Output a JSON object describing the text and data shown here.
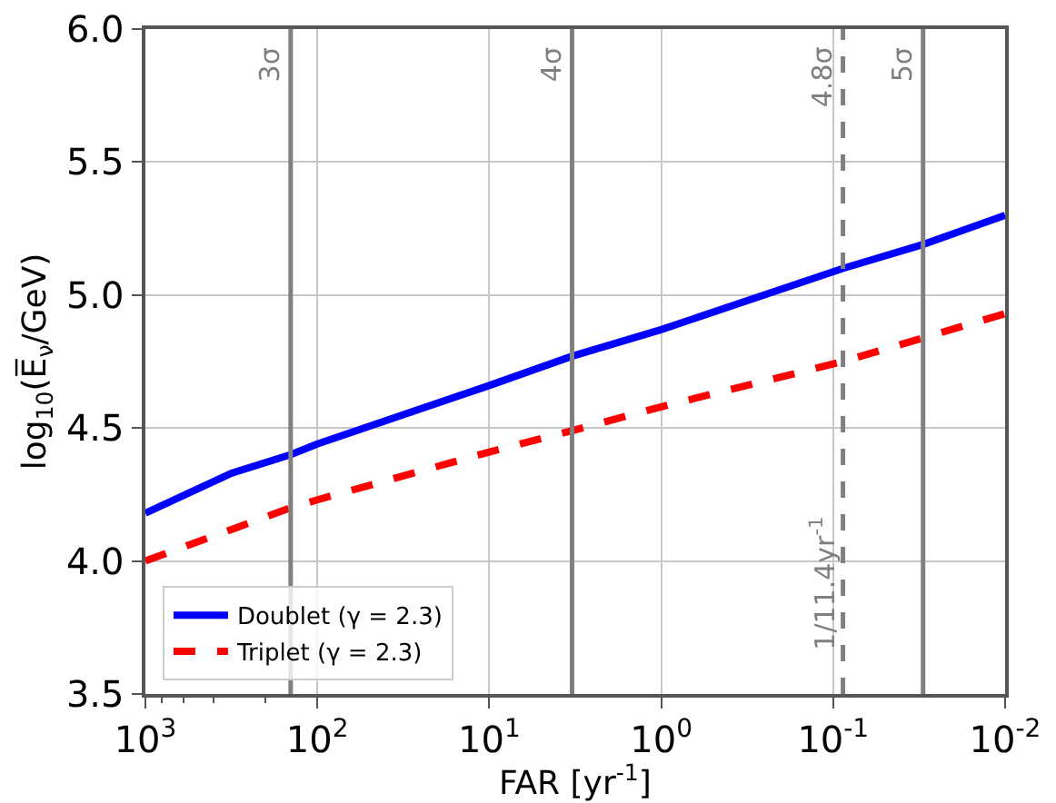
{
  "chart_data": {
    "type": "line",
    "xlabel": "FAR [yr$^{-1}$]",
    "ylabel": "log$_{10}$(E̅$_{ν}$/GeV)",
    "log": "x",
    "xlim": [
      1000,
      0.01
    ],
    "xticks": [
      {
        "value": 1000,
        "label": "10$^{3}$"
      },
      {
        "value": 100,
        "label": "10$^{2}$"
      },
      {
        "value": 10,
        "label": "10$^{1}$"
      },
      {
        "value": 1,
        "label": "10$^{0}$"
      },
      {
        "value": 0.1,
        "label": "10$^{-1}$"
      },
      {
        "value": 0.01,
        "label": "10$^{-2}$"
      }
    ],
    "ylim": [
      3.5,
      6.0
    ],
    "yticks": [
      {
        "value": 3.5,
        "label": "3.5"
      },
      {
        "value": 4.0,
        "label": "4.0"
      },
      {
        "value": 4.5,
        "label": "4.5"
      },
      {
        "value": 5.0,
        "label": "5.0"
      },
      {
        "value": 5.5,
        "label": "5.5"
      },
      {
        "value": 6.0,
        "label": "6.0"
      }
    ],
    "grid": true,
    "legend": "bottom left",
    "series": [
      {
        "name": "Doublet (γ = 2.3)",
        "color": "#0000ff",
        "line_style": "solid",
        "x": [
          1000,
          316,
          143,
          100,
          10,
          3.3,
          1,
          0.0877,
          0.03,
          0.01
        ],
        "values": [
          4.18,
          4.33,
          4.4,
          4.44,
          4.66,
          4.77,
          4.87,
          5.1,
          5.19,
          5.3
        ]
      },
      {
        "name": "Triplet (γ = 2.3)",
        "color": "#ff0000",
        "line_style": "dashed",
        "x": [
          1000,
          143,
          100,
          10,
          3.3,
          1,
          0.0877,
          0.01
        ],
        "values": [
          4.0,
          4.2,
          4.23,
          4.41,
          4.49,
          4.58,
          4.75,
          4.93
        ]
      }
    ],
    "ref_lines": [
      {
        "axis": "x",
        "value": 143,
        "label": "3σ",
        "color": "#808080",
        "line_style": "solid"
      },
      {
        "axis": "x",
        "value": 3.3,
        "label": "4σ",
        "color": "#808080",
        "line_style": "solid"
      },
      {
        "axis": "x",
        "value": 0.0877,
        "label": "4.8σ",
        "color": "#808080",
        "line_style": "dashed"
      },
      {
        "axis": "x",
        "value": 0.03,
        "label": "5σ",
        "color": "#808080",
        "line_style": "solid"
      }
    ],
    "annotations": [
      "1/11.4yr$^{-1}$"
    ]
  }
}
